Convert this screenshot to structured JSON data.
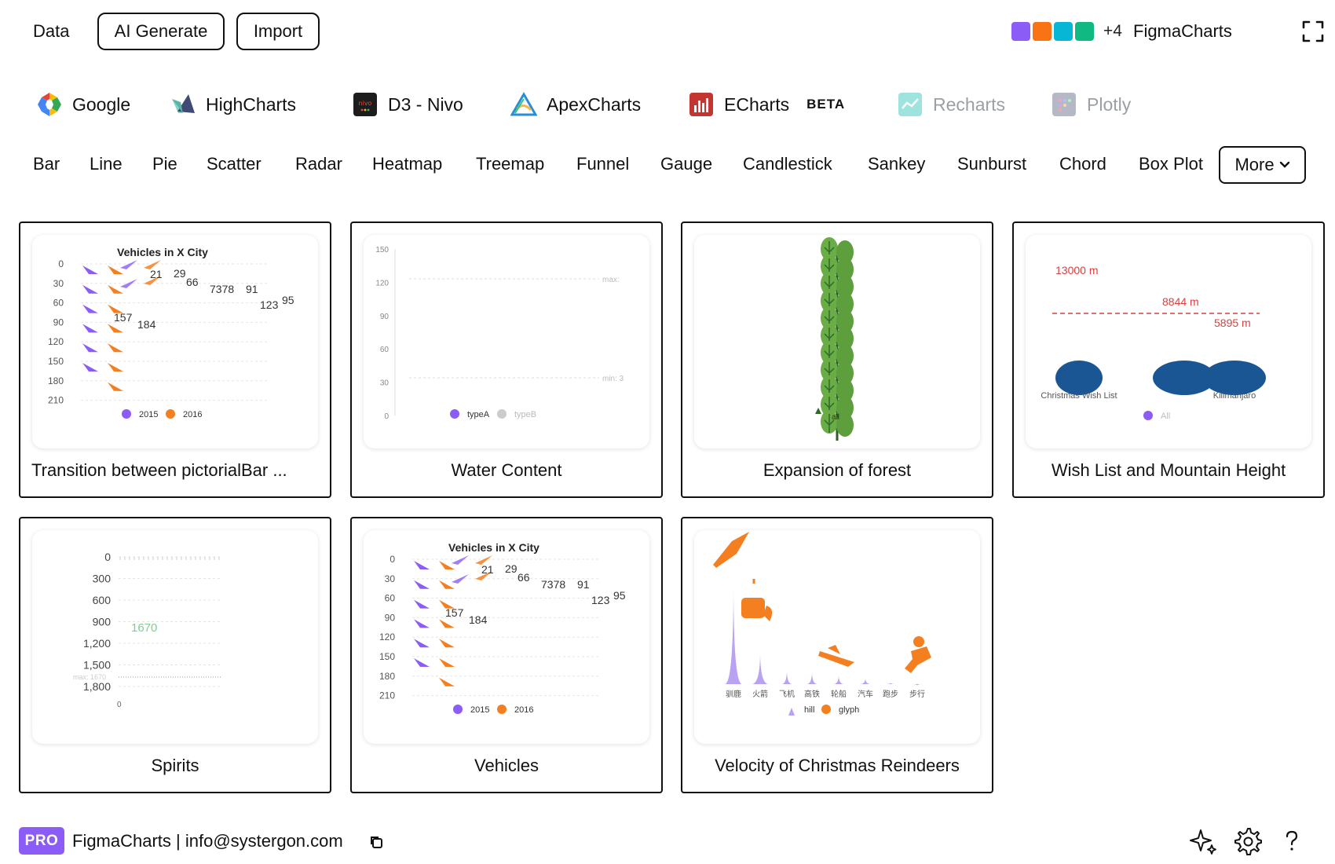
{
  "topbar": {
    "data_label": "Data",
    "ai_label": "AI Generate",
    "import_label": "Import",
    "swatch_colors": [
      "#8b5cf6",
      "#f97316",
      "#06b6d4",
      "#10b981"
    ],
    "extra_count": "+4",
    "brand": "FigmaCharts"
  },
  "libraries": [
    {
      "label": "Google",
      "icon": "google-icon",
      "enabled": true
    },
    {
      "label": "HighCharts",
      "icon": "highcharts-icon",
      "enabled": true
    },
    {
      "label": "D3 - Nivo",
      "icon": "nivo-icon",
      "logo_text": "nivo",
      "enabled": true
    },
    {
      "label": "ApexCharts",
      "icon": "apexcharts-icon",
      "enabled": true
    },
    {
      "label": "ECharts",
      "icon": "echarts-icon",
      "enabled": true,
      "badge": "BETA"
    },
    {
      "label": "Recharts",
      "icon": "recharts-icon",
      "enabled": false
    },
    {
      "label": "Plotly",
      "icon": "plotly-icon",
      "enabled": false
    }
  ],
  "chart_types": [
    "Bar",
    "Line",
    "Pie",
    "Scatter",
    "Radar",
    "Heatmap",
    "Treemap",
    "Funnel",
    "Gauge",
    "Candlestick",
    "Sankey",
    "Sunburst",
    "Chord",
    "Box Plot"
  ],
  "more_label": "More",
  "cards": [
    {
      "title": "Transition between pictorialBar ..."
    },
    {
      "title": "Water Content"
    },
    {
      "title": "Expansion of forest"
    },
    {
      "title": "Wish List and Mountain Height"
    },
    {
      "title": "Spirits"
    },
    {
      "title": "Vehicles"
    },
    {
      "title": "Velocity of Christmas Reindeers"
    }
  ],
  "thumbs": {
    "vehicles": {
      "title": "Vehicles in X City",
      "y_ticks": [
        "0",
        "30",
        "60",
        "90",
        "120",
        "150",
        "180",
        "210"
      ],
      "legend": [
        "2015",
        "2016"
      ],
      "value_labels": [
        "21",
        "29",
        "66",
        "7378",
        "91",
        "123",
        "95",
        "157",
        "184"
      ]
    },
    "water": {
      "y_ticks": [
        "150",
        "120",
        "90",
        "60",
        "30",
        "0"
      ],
      "max_label": "max:",
      "min_label": "min: 3",
      "legend": [
        "typeA",
        "typeB"
      ]
    },
    "forest": {
      "label": "all"
    },
    "wishlist": {
      "labels": [
        "13000 m",
        "8844 m",
        "5895 m"
      ],
      "categories": [
        "Christmas Wish List",
        "Kilimanjaro"
      ],
      "legend": "All"
    },
    "spirits": {
      "y_ticks": [
        "0",
        "300",
        "600",
        "900",
        "1,200",
        "1,500",
        "1,800"
      ],
      "max_label": "max: 1670",
      "value_label": "1670",
      "bottom_label": "0"
    },
    "reindeer": {
      "categories": [
        "驯鹿",
        "火箭",
        "飞机",
        "高铁",
        "轮船",
        "汽车",
        "跑步",
        "步行"
      ],
      "legend": [
        "hill",
        "glyph"
      ]
    }
  },
  "colors": {
    "purple": "#8b5cf6",
    "orange": "#f47f20",
    "navy": "#1a5694",
    "red": "#d94040",
    "green": "#4e9a3a"
  },
  "footer": {
    "badge": "PRO",
    "text": "FigmaCharts | info@systergon.com"
  }
}
